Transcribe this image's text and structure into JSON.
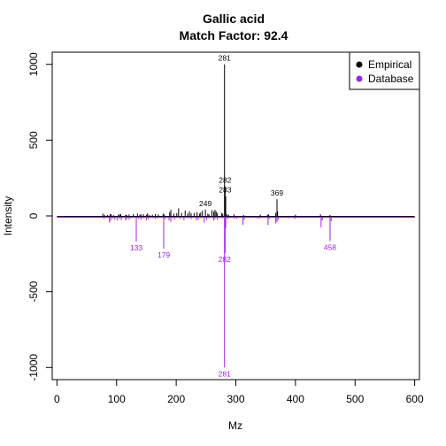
{
  "chart_data": {
    "type": "line",
    "title": "Gallic acid",
    "subtitle": "Match Factor: 92.4",
    "xlabel": "Mz",
    "ylabel": "Intensity",
    "xlim": [
      -8,
      608
    ],
    "ylim": [
      -1080,
      1080
    ],
    "x_ticks": [
      0,
      100,
      200,
      300,
      400,
      500,
      600
    ],
    "y_ticks": [
      -1000,
      -500,
      0,
      500,
      1000
    ],
    "legend_position": "top-right",
    "series": [
      {
        "name": "Empirical",
        "color": "#000000",
        "peaks": [
          [
            77,
            15
          ],
          [
            80,
            8
          ],
          [
            85,
            6
          ],
          [
            89,
            10
          ],
          [
            91,
            12
          ],
          [
            95,
            5
          ],
          [
            103,
            8
          ],
          [
            105,
            10
          ],
          [
            107,
            12
          ],
          [
            115,
            8
          ],
          [
            117,
            6
          ],
          [
            121,
            10
          ],
          [
            128,
            12
          ],
          [
            135,
            15
          ],
          [
            139,
            8
          ],
          [
            141,
            10
          ],
          [
            145,
            12
          ],
          [
            150,
            8
          ],
          [
            152,
            18
          ],
          [
            155,
            6
          ],
          [
            160,
            8
          ],
          [
            165,
            12
          ],
          [
            170,
            10
          ],
          [
            178,
            15
          ],
          [
            180,
            10
          ],
          [
            189,
            25
          ],
          [
            191,
            40
          ],
          [
            196,
            15
          ],
          [
            201,
            18
          ],
          [
            204,
            50
          ],
          [
            209,
            20
          ],
          [
            215,
            35
          ],
          [
            219,
            15
          ],
          [
            222,
            30
          ],
          [
            225,
            18
          ],
          [
            230,
            20
          ],
          [
            235,
            25
          ],
          [
            239,
            15
          ],
          [
            241,
            22
          ],
          [
            244,
            35
          ],
          [
            249,
            42
          ],
          [
            253,
            15
          ],
          [
            255,
            10
          ],
          [
            260,
            38
          ],
          [
            263,
            28
          ],
          [
            265,
            40
          ],
          [
            267,
            30
          ],
          [
            269,
            18
          ],
          [
            276,
            20
          ],
          [
            278,
            15
          ],
          [
            281,
            1000
          ],
          [
            282,
            195
          ],
          [
            283,
            130
          ],
          [
            285,
            12
          ],
          [
            288,
            8
          ],
          [
            297,
            10
          ],
          [
            313,
            6
          ],
          [
            341,
            8
          ],
          [
            353,
            8
          ],
          [
            355,
            10
          ],
          [
            367,
            20
          ],
          [
            369,
            110
          ],
          [
            370,
            30
          ],
          [
            400,
            8
          ],
          [
            442,
            10
          ],
          [
            458,
            6
          ]
        ]
      },
      {
        "name": "Database",
        "color": "#a020f0",
        "peaks": [
          [
            79,
            -20
          ],
          [
            88,
            -45
          ],
          [
            90,
            -30
          ],
          [
            93,
            -18
          ],
          [
            97,
            -25
          ],
          [
            101,
            -30
          ],
          [
            105,
            -20
          ],
          [
            108,
            -28
          ],
          [
            115,
            -30
          ],
          [
            117,
            -22
          ],
          [
            121,
            -25
          ],
          [
            124,
            -15
          ],
          [
            133,
            -170
          ],
          [
            137,
            -20
          ],
          [
            141,
            -25
          ],
          [
            145,
            -15
          ],
          [
            150,
            -30
          ],
          [
            153,
            -20
          ],
          [
            161,
            -15
          ],
          [
            165,
            -20
          ],
          [
            169,
            -15
          ],
          [
            179,
            -215
          ],
          [
            181,
            -20
          ],
          [
            188,
            -30
          ],
          [
            191,
            -40
          ],
          [
            197,
            -25
          ],
          [
            207,
            -20
          ],
          [
            213,
            -30
          ],
          [
            219,
            -15
          ],
          [
            225,
            -22
          ],
          [
            234,
            -30
          ],
          [
            237,
            -25
          ],
          [
            241,
            -15
          ],
          [
            247,
            -45
          ],
          [
            251,
            -25
          ],
          [
            255,
            -15
          ],
          [
            263,
            -30
          ],
          [
            265,
            -20
          ],
          [
            269,
            -25
          ],
          [
            277,
            -15
          ],
          [
            281,
            -1000
          ],
          [
            282,
            -245
          ],
          [
            283,
            -80
          ],
          [
            286,
            -20
          ],
          [
            289,
            -15
          ],
          [
            297,
            -18
          ],
          [
            301,
            -20
          ],
          [
            312,
            -60
          ],
          [
            314,
            -25
          ],
          [
            335,
            -15
          ],
          [
            339,
            -18
          ],
          [
            354,
            -60
          ],
          [
            356,
            -20
          ],
          [
            367,
            -50
          ],
          [
            369,
            -40
          ],
          [
            371,
            -25
          ],
          [
            388,
            -15
          ],
          [
            399,
            -20
          ],
          [
            401,
            -12
          ],
          [
            443,
            -75
          ],
          [
            445,
            -30
          ],
          [
            458,
            -165
          ],
          [
            460,
            -35
          ]
        ]
      }
    ],
    "annotations": [
      {
        "series": "Empirical",
        "text": "281",
        "x": 281,
        "y": 1000
      },
      {
        "series": "Empirical",
        "text": "282",
        "x": 282,
        "y": 195
      },
      {
        "series": "Empirical",
        "text": "283",
        "x": 282,
        "y": 130
      },
      {
        "series": "Empirical",
        "text": "249",
        "x": 249,
        "y": 42
      },
      {
        "series": "Empirical",
        "text": "369",
        "x": 369,
        "y": 110
      },
      {
        "series": "Database",
        "text": "133",
        "x": 133,
        "y": -170
      },
      {
        "series": "Database",
        "text": "179",
        "x": 179,
        "y": -215
      },
      {
        "series": "Database",
        "text": "282",
        "x": 281,
        "y": -245
      },
      {
        "series": "Database",
        "text": "458",
        "x": 458,
        "y": -165
      },
      {
        "series": "Database",
        "text": "281",
        "x": 281,
        "y": -1000
      }
    ]
  }
}
